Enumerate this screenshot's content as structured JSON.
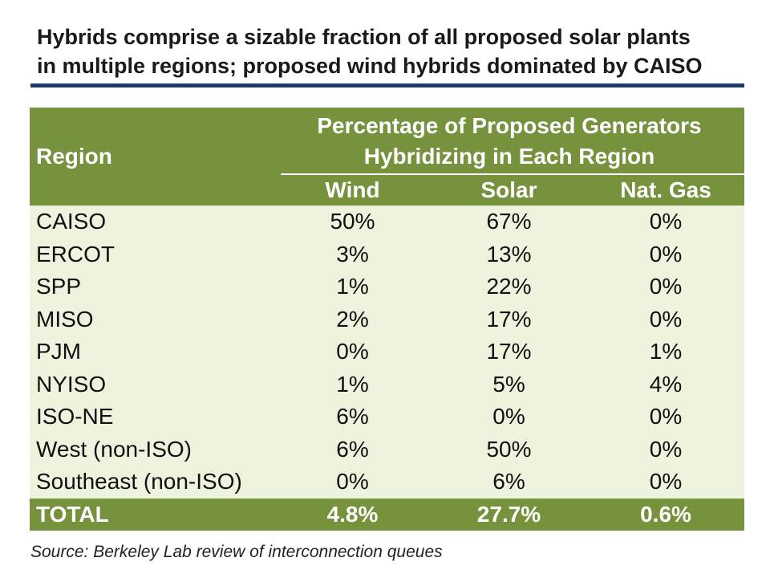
{
  "title": {
    "line1": "Hybrids comprise a sizable fraction of all proposed solar plants",
    "line2": "in multiple regions; proposed wind hybrids dominated by CAISO"
  },
  "colors": {
    "header_green": "#76923c",
    "row_background": "#eef3de",
    "title_rule": "#1f3a6e"
  },
  "table": {
    "region_header": "Region",
    "group_header_line1": "Percentage of Proposed Generators",
    "group_header_line2": "Hybridizing in Each Region",
    "columns": [
      "Wind",
      "Solar",
      "Nat. Gas"
    ],
    "rows": [
      {
        "region": "CAISO",
        "wind": "50%",
        "solar": "67%",
        "gas": "0%"
      },
      {
        "region": "ERCOT",
        "wind": "3%",
        "solar": "13%",
        "gas": "0%"
      },
      {
        "region": "SPP",
        "wind": "1%",
        "solar": "22%",
        "gas": "0%"
      },
      {
        "region": "MISO",
        "wind": "2%",
        "solar": "17%",
        "gas": "0%"
      },
      {
        "region": "PJM",
        "wind": "0%",
        "solar": "17%",
        "gas": "1%"
      },
      {
        "region": "NYISO",
        "wind": "1%",
        "solar": "5%",
        "gas": "4%"
      },
      {
        "region": "ISO-NE",
        "wind": "6%",
        "solar": "0%",
        "gas": "0%"
      },
      {
        "region": "West (non-ISO)",
        "wind": "6%",
        "solar": "50%",
        "gas": "0%"
      },
      {
        "region": "Southeast (non-ISO)",
        "wind": "0%",
        "solar": "6%",
        "gas": "0%"
      }
    ],
    "total": {
      "region": "TOTAL",
      "wind": "4.8%",
      "solar": "27.7%",
      "gas": "0.6%"
    }
  },
  "source": "Source: Berkeley Lab review of interconnection queues"
}
